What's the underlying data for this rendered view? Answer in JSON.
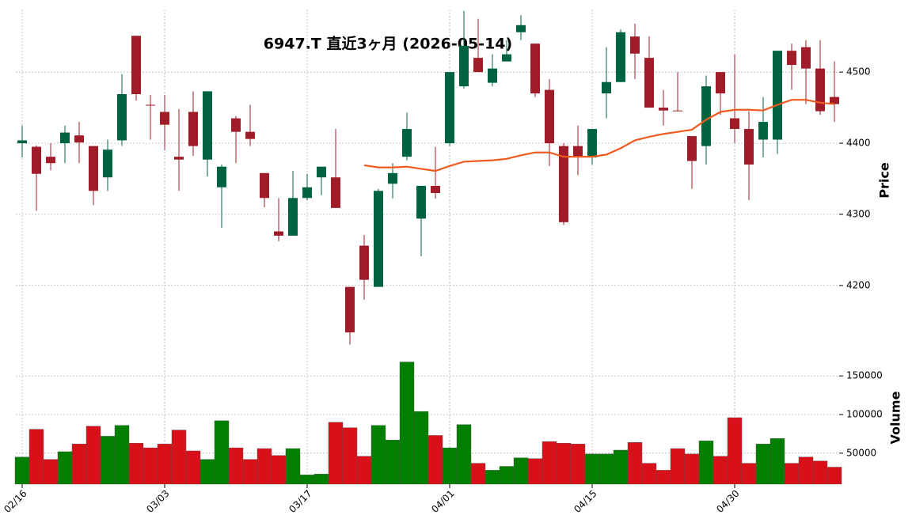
{
  "chart_data": {
    "type": "candlestick",
    "title": "6947.T  直近3ヶ月 (2026-05-14)",
    "categories": [
      "02/16",
      null,
      null,
      null,
      null,
      null,
      null,
      null,
      null,
      null,
      "03/03",
      null,
      null,
      null,
      null,
      null,
      null,
      null,
      null,
      null,
      "03/17",
      null,
      null,
      null,
      null,
      null,
      null,
      null,
      null,
      null,
      "04/01",
      null,
      null,
      null,
      null,
      null,
      null,
      null,
      null,
      null,
      "04/15",
      null,
      null,
      null,
      null,
      null,
      null,
      null,
      null,
      null,
      "04/30",
      null,
      null,
      null,
      null,
      null,
      null,
      null
    ],
    "open": [
      4400,
      4395,
      4381,
      4400,
      4411,
      4396,
      4352,
      4404,
      4551,
      4454,
      4444,
      4381,
      4444,
      4377,
      4338,
      4435,
      4416,
      4358,
      4276,
      4270,
      4323,
      4352,
      4352,
      4198,
      4256,
      4198,
      4343,
      4381,
      4294,
      4340,
      4400,
      4480,
      4520,
      4485,
      4515,
      4556,
      4540,
      4475,
      4396,
      4396,
      4380,
      4470,
      4486,
      4550,
      4520,
      4450,
      4446,
      4410,
      4396,
      4500,
      4435,
      4420,
      4405,
      4405,
      4530,
      4535,
      4505,
      4465
    ],
    "high": [
      4425,
      4397,
      4400,
      4425,
      4430,
      4396,
      4405,
      4497,
      4551,
      4468,
      4468,
      4448,
      4473,
      4473,
      4370,
      4438,
      4454,
      4358,
      4323,
      4361,
      4357,
      4367,
      4420,
      4198,
      4271,
      4336,
      4372,
      4443,
      4340,
      4395,
      4500,
      4586,
      4575,
      4525,
      4545,
      4580,
      4540,
      4490,
      4400,
      4425,
      4420,
      4535,
      4560,
      4568,
      4550,
      4475,
      4500,
      4410,
      4495,
      4500,
      4525,
      4445,
      4465,
      4530,
      4540,
      4545,
      4545,
      4515
    ],
    "low": [
      4380,
      4305,
      4362,
      4372,
      4372,
      4313,
      4333,
      4396,
      4460,
      4405,
      4390,
      4333,
      4382,
      4353,
      4281,
      4372,
      4396,
      4310,
      4262,
      4270,
      4320,
      4327,
      4309,
      4117,
      4180,
      4198,
      4322,
      4376,
      4241,
      4322,
      4396,
      4477,
      4500,
      4480,
      4515,
      4545,
      4465,
      4368,
      4285,
      4355,
      4370,
      4435,
      4486,
      4490,
      4450,
      4425,
      4445,
      4336,
      4370,
      4440,
      4400,
      4320,
      4380,
      4385,
      4475,
      4455,
      4440,
      4430
    ],
    "close": [
      4404,
      4357,
      4372,
      4415,
      4401,
      4333,
      4391,
      4469,
      4469,
      4453,
      4426,
      4377,
      4396,
      4473,
      4367,
      4416,
      4406,
      4323,
      4270,
      4323,
      4338,
      4367,
      4309,
      4134,
      4208,
      4333,
      4358,
      4420,
      4340,
      4330,
      4500,
      4537,
      4500,
      4505,
      4525,
      4566,
      4470,
      4400,
      4289,
      4380,
      4420,
      4486,
      4556,
      4526,
      4450,
      4446,
      4445,
      4375,
      4480,
      4470,
      4420,
      4370,
      4430,
      4530,
      4510,
      4505,
      4445,
      4455
    ],
    "up_color": "#006340",
    "down_color": "#a01c28",
    "ylabel": "Price",
    "ylim": [
      4112,
      4588
    ],
    "yticks": [
      4200,
      4300,
      4400,
      4500
    ],
    "grid": true,
    "ma": {
      "color": "#f05a1e",
      "values": [
        null,
        null,
        null,
        null,
        null,
        null,
        null,
        null,
        null,
        null,
        null,
        null,
        null,
        null,
        null,
        null,
        null,
        null,
        null,
        null,
        null,
        null,
        null,
        null,
        4369,
        4366,
        4366,
        4367,
        4364,
        4361,
        4368,
        4374,
        4375,
        4376,
        4378,
        4383,
        4387,
        4387,
        4381,
        4381,
        4381,
        4384,
        4393,
        4404,
        4409,
        4413,
        4416,
        4419,
        4433,
        4444,
        4447,
        4447,
        4446,
        4454,
        4461,
        4461,
        4457,
        4455
      ]
    },
    "volume": {
      "ylabel": "Volume",
      "up_color": "#007f00",
      "down_color": "#d9101a",
      "ylim": [
        10000,
        186000
      ],
      "yticks": [
        50000,
        100000,
        150000
      ],
      "values": [
        45000,
        81000,
        42000,
        52000,
        62000,
        85000,
        72000,
        86000,
        63000,
        57000,
        62000,
        80000,
        53000,
        42000,
        92000,
        57000,
        42000,
        56000,
        47000,
        56000,
        22000,
        23000,
        90000,
        83000,
        46000,
        86000,
        67000,
        168000,
        104000,
        73000,
        57000,
        87000,
        37000,
        28000,
        33000,
        44000,
        43000,
        65000,
        63000,
        62000,
        49000,
        49000,
        54000,
        64000,
        37000,
        28000,
        56000,
        49000,
        66000,
        46000,
        96000,
        37000,
        62000,
        69000,
        37000,
        45000,
        40000,
        32000
      ]
    }
  }
}
